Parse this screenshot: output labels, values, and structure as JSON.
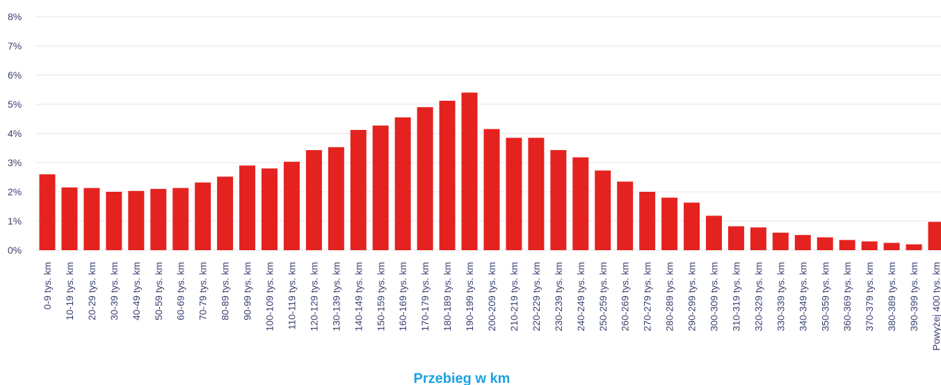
{
  "chart_data": {
    "type": "bar",
    "title": "",
    "xlabel": "Przebieg w km",
    "ylabel": "",
    "ylim": [
      0,
      8
    ],
    "y_ticks": [
      "0%",
      "1%",
      "2%",
      "3%",
      "4%",
      "5%",
      "6%",
      "7%",
      "8%"
    ],
    "grid": true,
    "legend": "none",
    "categories": [
      "0-9 tys. km",
      "10-19 tys. km",
      "20-29 tys. km",
      "30-39 tys. km",
      "40-49 tys. km",
      "50-59 tys. km",
      "60-69 tys. km",
      "70-79 tys. km",
      "80-89 tys. km",
      "90-99 tys. km",
      "100-109 tys. km",
      "110-119 tys. km",
      "120-129 tys. km",
      "130-139 tys. km",
      "140-149 tys. km",
      "150-159 tys. km",
      "160-169 tys. km",
      "170-179 tys. km",
      "180-189 tys. km",
      "190-199 tys. km",
      "200-209 tys. km",
      "210-219 tys. km",
      "220-229 tys. km",
      "230-239 tys. km",
      "240-249 tys. km",
      "250-259 tys. km",
      "260-269 tys. km",
      "270-279 tys. km",
      "280-289 tys. km",
      "290-299 tys. km",
      "300-309 tys. km",
      "310-319 tys. km",
      "320-329 tys. km",
      "330-339 tys. km",
      "340-349 tys. km",
      "350-359 tys. km",
      "360-369 tys. km",
      "370-379 tys. km",
      "380-389 tys. km",
      "390-399 tys. km",
      "Powyżej 400 tys. km"
    ],
    "values": [
      2.6,
      2.15,
      2.13,
      2.0,
      2.03,
      2.1,
      2.13,
      2.32,
      2.52,
      2.9,
      2.8,
      3.03,
      3.43,
      3.53,
      4.12,
      4.27,
      4.55,
      4.9,
      5.12,
      5.4,
      4.15,
      3.85,
      3.85,
      3.43,
      3.18,
      2.73,
      2.35,
      2.0,
      1.8,
      1.63,
      1.18,
      0.82,
      0.78,
      0.6,
      0.52,
      0.44,
      0.35,
      0.3,
      0.25,
      0.2,
      0.97
    ],
    "colors": {
      "bar": "#e42320",
      "grid": "#e6e6ee",
      "tick_text": "#3a4170",
      "xlabel": "#1aa3e0"
    }
  }
}
